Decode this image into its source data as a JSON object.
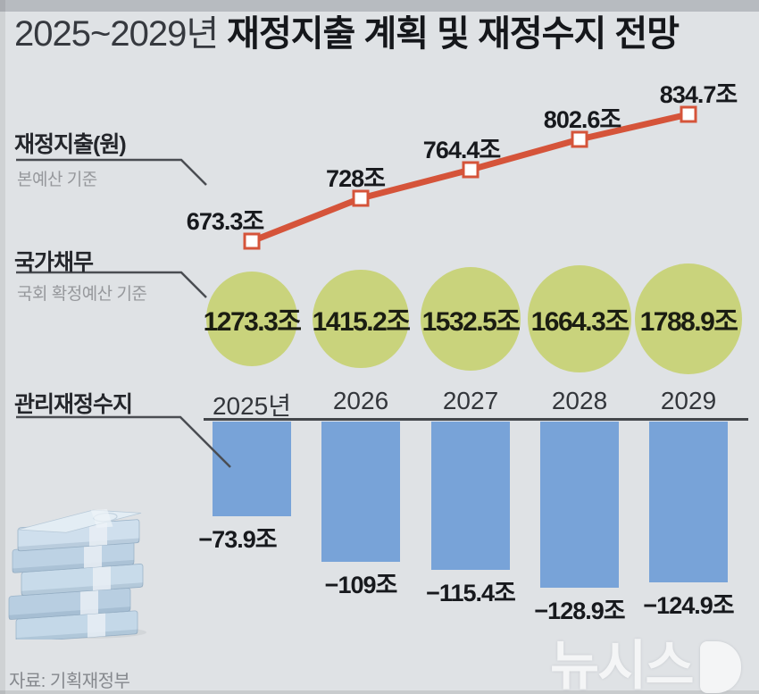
{
  "title": {
    "range": "2025~2029년",
    "rest": "재정지출 계획 및 재정수지 전망"
  },
  "legend": {
    "expenditure_label": "재정지출(원)",
    "expenditure_note": "본예산 기준",
    "debt_label": "국가채무",
    "debt_note": "국회 확정예산 기준",
    "balance_label": "관리재정수지"
  },
  "source": "자료: 기획재정부",
  "watermark": "뉴시스",
  "colors": {
    "background": "#dfe2e5",
    "line": "#d5543a",
    "bubble": "#c9d37c",
    "bar": "#78a3d8",
    "callout": "#4a4d52",
    "muted_text": "#96989c"
  },
  "chart_data": {
    "type": "combo",
    "categories": [
      "2025년",
      "2026",
      "2027",
      "2028",
      "2029"
    ],
    "series": [
      {
        "name": "재정지출",
        "type": "line",
        "basis": "본예산 기준",
        "values": [
          673.3,
          728,
          764.4,
          802.6,
          834.7
        ],
        "labels": [
          "673.3조",
          "728조",
          "764.4조",
          "802.6조",
          "834.7조"
        ],
        "color": "#d5543a"
      },
      {
        "name": "국가채무",
        "type": "bubble",
        "basis": "국회 확정예산 기준",
        "values": [
          1273.3,
          1415.2,
          1532.5,
          1664.3,
          1788.9
        ],
        "labels": [
          "1273.3조",
          "1415.2조",
          "1532.5조",
          "1664.3조",
          "1788.9조"
        ],
        "color": "#c9d37c"
      },
      {
        "name": "관리재정수지",
        "type": "bar",
        "values": [
          -73.9,
          -109,
          -115.4,
          -128.9,
          -124.9
        ],
        "labels": [
          "−73.9조",
          "−109조",
          "−115.4조",
          "−128.9조",
          "−124.9조"
        ],
        "color": "#78a3d8"
      }
    ]
  }
}
